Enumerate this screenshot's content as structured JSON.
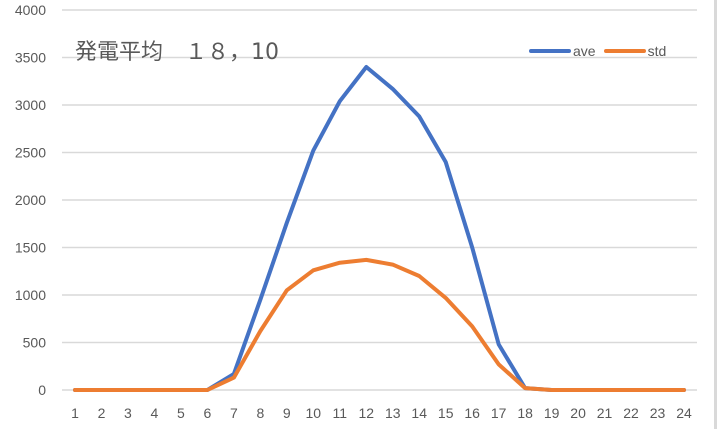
{
  "chart_data": {
    "type": "line",
    "title": "発電平均　１８，10",
    "xlabel": "",
    "ylabel": "",
    "x": [
      1,
      2,
      3,
      4,
      5,
      6,
      7,
      8,
      9,
      10,
      11,
      12,
      13,
      14,
      15,
      16,
      17,
      18,
      19,
      20,
      21,
      22,
      23,
      24
    ],
    "categories": [
      "1",
      "2",
      "3",
      "4",
      "5",
      "6",
      "7",
      "8",
      "9",
      "10",
      "11",
      "12",
      "13",
      "14",
      "15",
      "16",
      "17",
      "18",
      "19",
      "20",
      "21",
      "22",
      "23",
      "24"
    ],
    "ylim": [
      0,
      4000
    ],
    "yticks": [
      0,
      500,
      1000,
      1500,
      2000,
      2500,
      3000,
      3500,
      4000
    ],
    "grid": true,
    "legend_position": "top-right",
    "series": [
      {
        "name": "ave",
        "color": "#4472C4",
        "values": [
          0,
          0,
          0,
          0,
          0,
          0,
          170,
          950,
          1760,
          2520,
          3040,
          3400,
          3170,
          2880,
          2400,
          1500,
          480,
          20,
          0,
          0,
          0,
          0,
          0,
          0
        ]
      },
      {
        "name": "std",
        "color": "#ED7D31",
        "values": [
          0,
          0,
          0,
          0,
          0,
          0,
          130,
          620,
          1050,
          1260,
          1340,
          1370,
          1320,
          1200,
          970,
          670,
          270,
          20,
          0,
          0,
          0,
          0,
          0,
          0
        ]
      }
    ]
  },
  "legend": {
    "items": [
      {
        "label": "ave",
        "color": "#4472C4"
      },
      {
        "label": "std",
        "color": "#ED7D31"
      }
    ]
  },
  "colors": {
    "gridline": "#d9d9d9",
    "axis_text": "#595959",
    "title_text": "#595959"
  }
}
